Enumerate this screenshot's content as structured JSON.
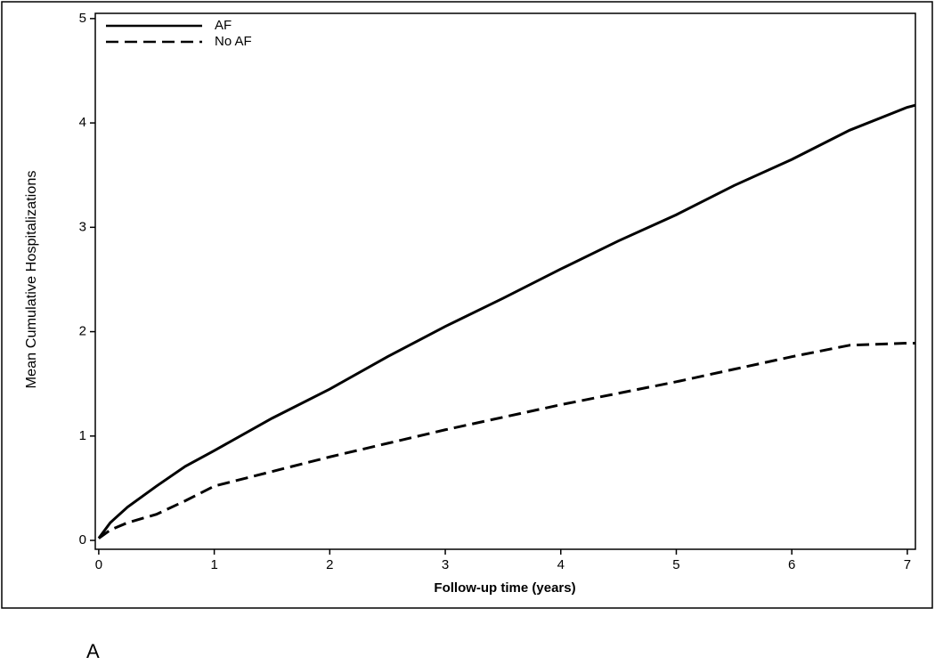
{
  "chart_data": {
    "type": "line",
    "panel_label": "A",
    "x_label": "Follow-up time (years)",
    "y_label": "Mean Cumulative Hospitalizations",
    "x": [
      0,
      0.1,
      0.25,
      0.5,
      0.75,
      1,
      1.5,
      2,
      2.5,
      3,
      3.5,
      4,
      4.5,
      5,
      5.5,
      6,
      6.5,
      7,
      7.07
    ],
    "series": [
      {
        "name": "AF",
        "color": "#000000",
        "line_style": "solid",
        "values": [
          0.02,
          0.17,
          0.32,
          0.52,
          0.71,
          0.86,
          1.17,
          1.45,
          1.76,
          2.05,
          2.32,
          2.6,
          2.87,
          3.12,
          3.4,
          3.65,
          3.93,
          4.15,
          4.17
        ]
      },
      {
        "name": "No AF",
        "color": "#000000",
        "line_style": "dashed",
        "values": [
          0.02,
          0.1,
          0.17,
          0.25,
          0.38,
          0.52,
          0.66,
          0.8,
          0.93,
          1.06,
          1.18,
          1.3,
          1.41,
          1.52,
          1.64,
          1.76,
          1.87,
          1.89,
          1.89
        ]
      }
    ],
    "xlim": [
      -0.03,
      7.07
    ],
    "xticks": [
      0,
      1,
      2,
      3,
      4,
      5,
      6,
      7
    ],
    "ylim": [
      -0.085,
      5.05
    ],
    "yticks": [
      0,
      1,
      2,
      3,
      4,
      5
    ],
    "grid": false,
    "legend": "upper left"
  }
}
